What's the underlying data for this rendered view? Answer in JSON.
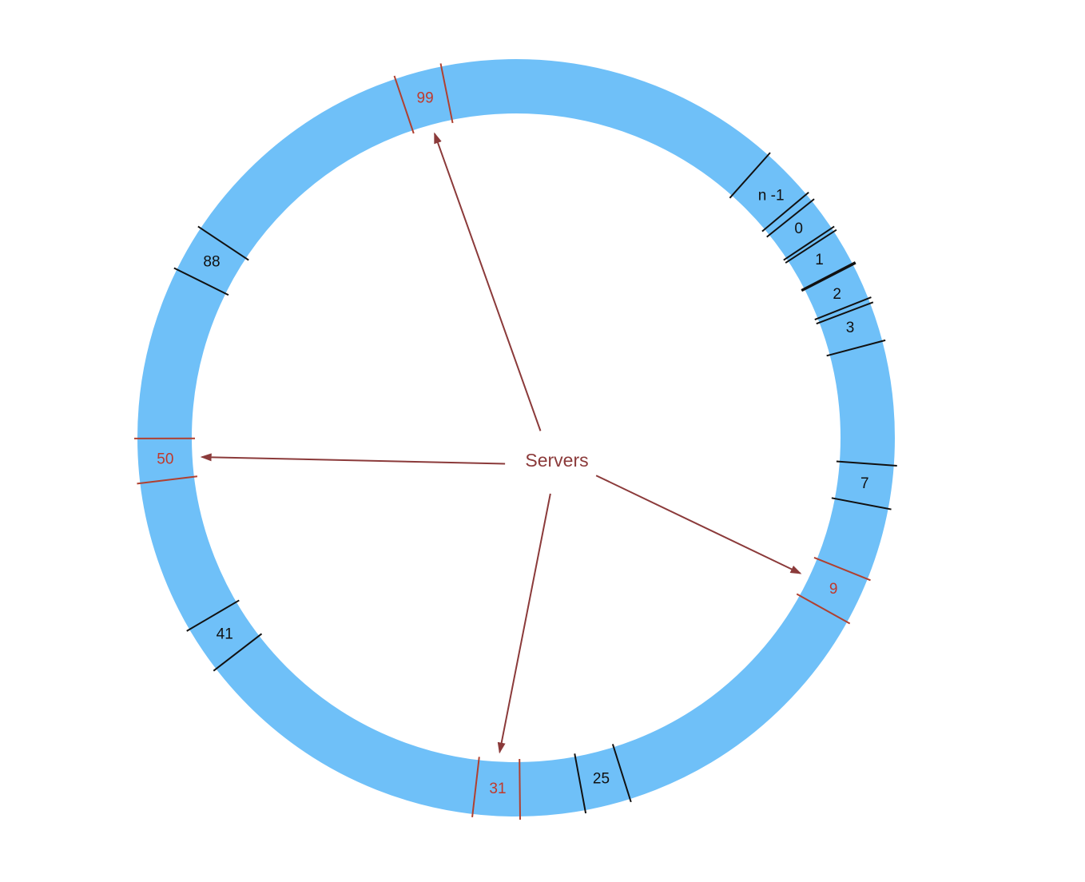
{
  "ring": {
    "fill_color": "#6fc0f8",
    "slots": [
      {
        "label": "n -1",
        "type": "key",
        "angle": 46.5,
        "half_width": 4.8
      },
      {
        "label": "0",
        "type": "key",
        "angle": 53.5,
        "half_width": 3.5
      },
      {
        "label": "1",
        "type": "key",
        "angle": 59.6,
        "half_width": 3.2
      },
      {
        "label": "2",
        "type": "key",
        "angle": 65.9,
        "half_width": 3.3
      },
      {
        "label": "3",
        "type": "key",
        "angle": 71.8,
        "half_width": 3.4
      },
      {
        "label": "7",
        "type": "key",
        "angle": 97.5,
        "half_width": 3.3
      },
      {
        "label": "9",
        "type": "server",
        "angle": 115.5,
        "half_width": 3.6
      },
      {
        "label": "25",
        "type": "key",
        "angle": 166.0,
        "half_width": 3.5
      },
      {
        "label": "31",
        "type": "server",
        "angle": 183.0,
        "half_width": 3.6
      },
      {
        "label": "41",
        "type": "key",
        "angle": 236.0,
        "half_width": 3.6
      },
      {
        "label": "50",
        "type": "server",
        "angle": 266.5,
        "half_width": 3.4
      },
      {
        "label": "88",
        "type": "key",
        "angle": 300.0,
        "half_width": 3.6
      },
      {
        "label": "99",
        "type": "server",
        "angle": 345.0,
        "half_width": 3.6
      }
    ]
  },
  "center": {
    "label": "Servers"
  },
  "colors": {
    "key_divider": "#111111",
    "key_text": "#111111",
    "server_divider": "#b04030",
    "server_text": "#c0392b",
    "arrow": "#8b3a3a",
    "center_text": "#8b3a3a"
  }
}
